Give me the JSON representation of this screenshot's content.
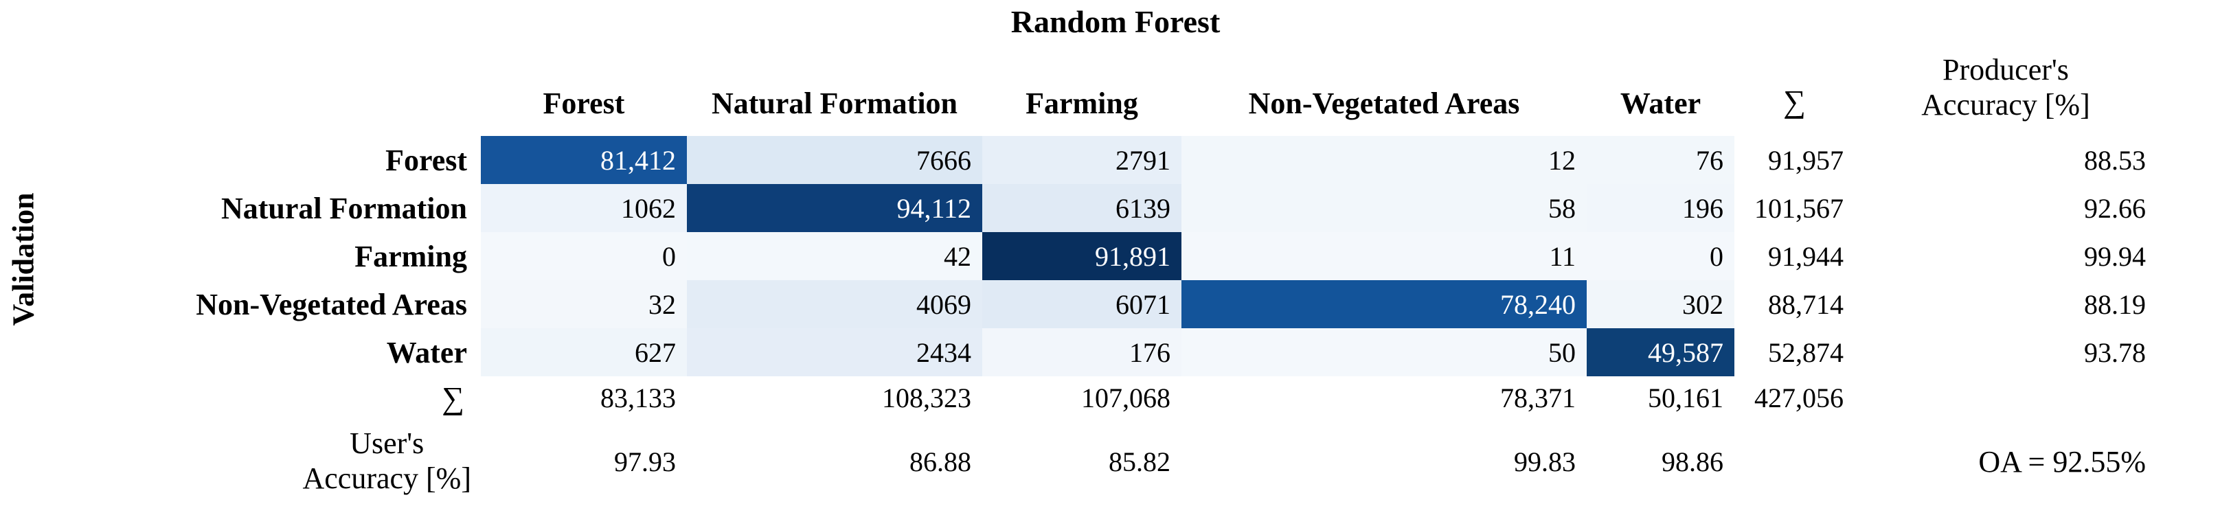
{
  "title": "Random Forest",
  "row_axis_label": "Validation",
  "headers": {
    "classes": [
      "Forest",
      "Natural Formation",
      "Farming",
      "Non-Vegetated Areas",
      "Water"
    ],
    "sum": "∑",
    "producer": [
      "Producer's",
      "Accuracy [%]"
    ]
  },
  "rows": [
    {
      "label": "Forest",
      "cells": [
        {
          "t": "81,412",
          "bg": "#15549b"
        },
        {
          "t": "7666",
          "bg": "#dce8f4"
        },
        {
          "t": "2791",
          "bg": "#e7eff8"
        },
        {
          "t": "12",
          "bg": "#f2f7fb"
        },
        {
          "t": "76",
          "bg": "#f2f7fb"
        }
      ],
      "sum": "91,957",
      "pa": "88.53"
    },
    {
      "label": "Natural Formation",
      "cells": [
        {
          "t": "1062",
          "bg": "#edf3fa"
        },
        {
          "t": "94,112",
          "bg": "#0d3e78"
        },
        {
          "t": "6139",
          "bg": "#e0eaf5"
        },
        {
          "t": "58",
          "bg": "#f2f7fb"
        },
        {
          "t": "196",
          "bg": "#f1f6fb"
        }
      ],
      "sum": "101,567",
      "pa": "92.66"
    },
    {
      "label": "Farming",
      "cells": [
        {
          "t": "0",
          "bg": "#f4f8fc"
        },
        {
          "t": "42",
          "bg": "#f3f8fc"
        },
        {
          "t": "91,891",
          "bg": "#082f5e"
        },
        {
          "t": "11",
          "bg": "#f4f8fc"
        },
        {
          "t": "0",
          "bg": "#f4f8fc"
        }
      ],
      "sum": "91,944",
      "pa": "99.94"
    },
    {
      "label": "Non-Vegetated Areas",
      "cells": [
        {
          "t": "32",
          "bg": "#f3f7fb"
        },
        {
          "t": "4069",
          "bg": "#e3ecf6"
        },
        {
          "t": "6071",
          "bg": "#e0eaf5"
        },
        {
          "t": "78,240",
          "bg": "#13549a"
        },
        {
          "t": "302",
          "bg": "#f1f6fa"
        }
      ],
      "sum": "88,714",
      "pa": "88.19"
    },
    {
      "label": "Water",
      "cells": [
        {
          "t": "627",
          "bg": "#eff5fa"
        },
        {
          "t": "2434",
          "bg": "#e5edf7"
        },
        {
          "t": "176",
          "bg": "#f2f6fb"
        },
        {
          "t": "50",
          "bg": "#f4f8fc"
        },
        {
          "t": "49,587",
          "bg": "#0d4076"
        }
      ],
      "sum": "52,874",
      "pa": "93.78"
    }
  ],
  "sum_row": {
    "label": "∑",
    "values": [
      "83,133",
      "108,323",
      "107,068",
      "78,371",
      "50,161"
    ],
    "total": "427,056"
  },
  "ua_row": {
    "label": [
      "User's",
      "Accuracy [%]"
    ],
    "values": [
      "97.93",
      "86.88",
      "85.82",
      "99.83",
      "98.86"
    ],
    "oa": "OA = 92.55%"
  },
  "chart_data": {
    "type": "heatmap",
    "title": "Random Forest",
    "row_axis": "Validation",
    "classes": [
      "Forest",
      "Natural Formation",
      "Farming",
      "Non-Vegetated Areas",
      "Water"
    ],
    "matrix": [
      [
        81412,
        7666,
        2791,
        12,
        76
      ],
      [
        1062,
        94112,
        6139,
        58,
        196
      ],
      [
        0,
        42,
        91891,
        11,
        0
      ],
      [
        32,
        4069,
        6071,
        78240,
        302
      ],
      [
        627,
        2434,
        176,
        50,
        49587
      ]
    ],
    "row_sums": [
      91957,
      101567,
      91944,
      88714,
      52874
    ],
    "col_sums": [
      83133,
      108323,
      107068,
      78371,
      50161
    ],
    "total": 427056,
    "producers_accuracy": [
      88.53,
      92.66,
      99.94,
      88.19,
      93.78
    ],
    "users_accuracy": [
      97.93,
      86.88,
      85.82,
      99.83,
      98.86
    ],
    "overall_accuracy_pct": 92.55,
    "colormap": "Blues",
    "diagonal_colors": [
      "#15549b",
      "#0d3e78",
      "#082f5e",
      "#13549a",
      "#0d4076"
    ]
  }
}
